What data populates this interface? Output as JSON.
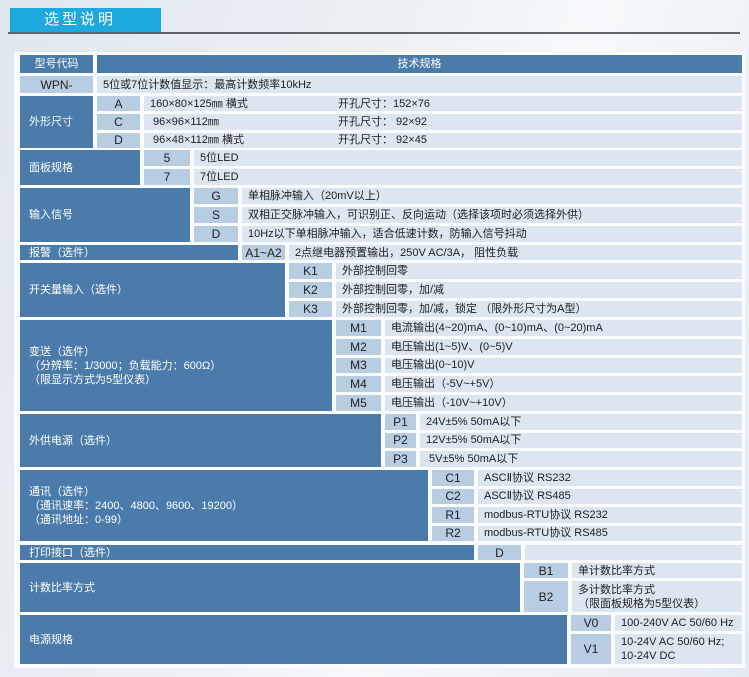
{
  "title": "选型说明",
  "header": {
    "code_col": "型号代码",
    "spec_col": "技术规格"
  },
  "model": {
    "code": "WPN-",
    "desc": "5位或7位计数值显示：最高计数频率10kHz"
  },
  "groups": [
    {
      "label": [
        "外形尺寸"
      ],
      "options": [
        {
          "code": "A",
          "desc": "160×80×125㎜ 横式",
          "cutout": "开孔尺寸：152×76"
        },
        {
          "code": "C",
          "desc": " 96×96×112㎜",
          "cutout": "开孔尺寸： 92×92"
        },
        {
          "code": "D",
          "desc": " 96×48×112㎜ 横式",
          "cutout": "开孔尺寸： 92×45"
        }
      ]
    },
    {
      "label": [
        "面板规格"
      ],
      "options": [
        {
          "code": "5",
          "desc": "5位LED"
        },
        {
          "code": "7",
          "desc": "7位LED"
        }
      ]
    },
    {
      "label": [
        "输入信号"
      ],
      "options": [
        {
          "code": "G",
          "desc": "单相脉冲输入（20mV以上）"
        },
        {
          "code": "S",
          "desc": "双相正交脉冲输入，可识别正、反向运动（选择该项时必须选择外供）"
        },
        {
          "code": "D",
          "desc": "10Hz以下单相脉冲输入，适合低速计数，防输入信号抖动"
        }
      ]
    },
    {
      "label": [
        "报警（选件）"
      ],
      "options": [
        {
          "code": "A1~A2",
          "desc": "2点继电器预置输出，250V AC/3A， 阻性负载"
        }
      ]
    },
    {
      "label": [
        "开关量输入（选件）"
      ],
      "options": [
        {
          "code": "K1",
          "desc": "外部控制回零"
        },
        {
          "code": "K2",
          "desc": "外部控制回零，加/减"
        },
        {
          "code": "K3",
          "desc": "外部控制回零，加/减，锁定 （限外形尺寸为A型）"
        }
      ]
    },
    {
      "label": [
        "变送（选件）",
        "（分辨率：1/3000；负载能力：600Ω）",
        "（限显示方式为5型仪表）"
      ],
      "options": [
        {
          "code": "M1",
          "desc": "电流输出(4~20)mA、(0~10)mA、(0~20)mA"
        },
        {
          "code": "M2",
          "desc": "电压输出(1~5)V、(0~5)V"
        },
        {
          "code": "M3",
          "desc": "电压输出(0~10)V"
        },
        {
          "code": "M4",
          "desc": "电压输出（-5V~+5V）"
        },
        {
          "code": "M5",
          "desc": "电压输出（-10V~+10V）"
        }
      ]
    },
    {
      "label": [
        "外供电源（选件）"
      ],
      "options": [
        {
          "code": "P1",
          "desc": "24V±5% 50mA以下"
        },
        {
          "code": "P2",
          "desc": "12V±5% 50mA以下"
        },
        {
          "code": "P3",
          "desc": " 5V±5% 50mA以下"
        }
      ]
    },
    {
      "label": [
        "通讯（选件）",
        "（通讯速率：2400、4800、9600、19200）",
        "（通讯地址：0-99）"
      ],
      "options": [
        {
          "code": "C1",
          "desc": "ASCⅡ协议 RS232"
        },
        {
          "code": "C2",
          "desc": "ASCⅡ协议 RS485"
        },
        {
          "code": "R1",
          "desc": "modbus-RTU协议 RS232"
        },
        {
          "code": "R2",
          "desc": "modbus-RTU协议 RS485"
        }
      ]
    },
    {
      "label": [
        "打印接口（选件）"
      ],
      "options": [
        {
          "code": "D",
          "desc": ""
        }
      ]
    },
    {
      "label": [
        "计数比率方式"
      ],
      "options": [
        {
          "code": "B1",
          "desc": "单计数比率方式"
        },
        {
          "code": "B2",
          "desc": "多计数比率方式\n（限面板规格为5型仪表）"
        }
      ]
    },
    {
      "label": [
        "电源规格"
      ],
      "options": [
        {
          "code": "V0",
          "desc": "100-240V AC 50/60 Hz"
        },
        {
          "code": "V1",
          "desc": "10-24V AC 50/60 Hz;\n10-24V DC"
        }
      ]
    }
  ],
  "colors": {
    "title_tab": "#1ea8e0",
    "label_cell": "#4a7bab",
    "code_cell": "#b9cde2",
    "desc_cell": "#dbe6f1"
  }
}
